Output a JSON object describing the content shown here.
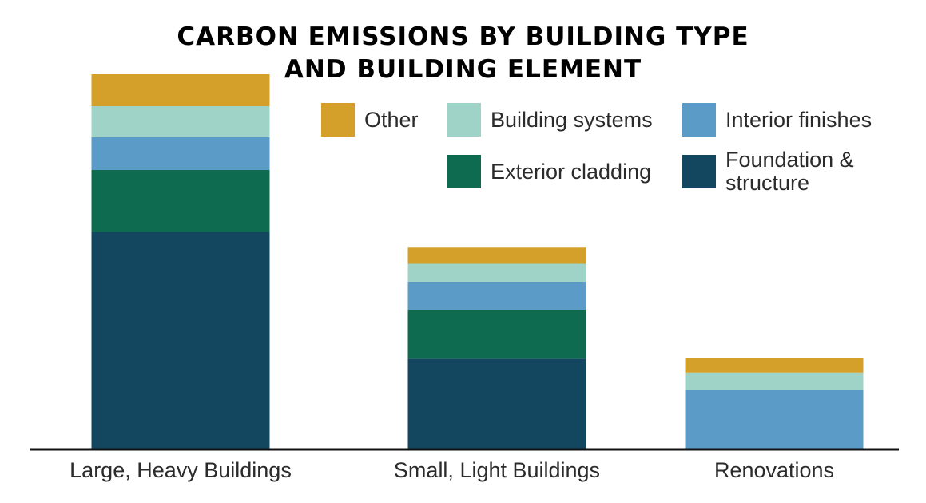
{
  "chart_data": {
    "type": "bar",
    "stacked": true,
    "title_lines": [
      "CARBON EMISSIONS BY BUILDING TYPE",
      "AND BUILDING ELEMENT"
    ],
    "categories": [
      "Large, Heavy Buildings",
      "Small, Light Buildings",
      "Renovations"
    ],
    "series": [
      {
        "name": "Foundation & structure",
        "color": "#12475f",
        "values": [
          218,
          91,
          0
        ]
      },
      {
        "name": "Exterior cladding",
        "color": "#0f6b4f",
        "values": [
          62,
          49,
          0
        ]
      },
      {
        "name": "Interior finishes",
        "color": "#5b9bc8",
        "values": [
          33,
          28,
          60
        ]
      },
      {
        "name": "Building systems",
        "color": "#9fd3c7",
        "values": [
          31,
          18,
          17
        ]
      },
      {
        "name": "Other",
        "color": "#d4a02a",
        "values": [
          32,
          17,
          15
        ]
      }
    ],
    "ylim": [
      0,
      400
    ],
    "xlabel": "",
    "ylabel": "",
    "grid": false,
    "legend_position": "top-right",
    "axis_color": "#111111"
  },
  "legend": {
    "items": [
      {
        "key": "other",
        "label": "Other",
        "color": "#d4a02a"
      },
      {
        "key": "building-systems",
        "label": "Building systems",
        "color": "#9fd3c7"
      },
      {
        "key": "interior-finishes",
        "label": "Interior finishes",
        "color": "#5b9bc8"
      },
      {
        "key": "exterior-cladding",
        "label": "Exterior cladding",
        "color": "#0f6b4f"
      },
      {
        "key": "foundation-structure",
        "label": "Foundation & structure",
        "color": "#12475f"
      }
    ]
  }
}
